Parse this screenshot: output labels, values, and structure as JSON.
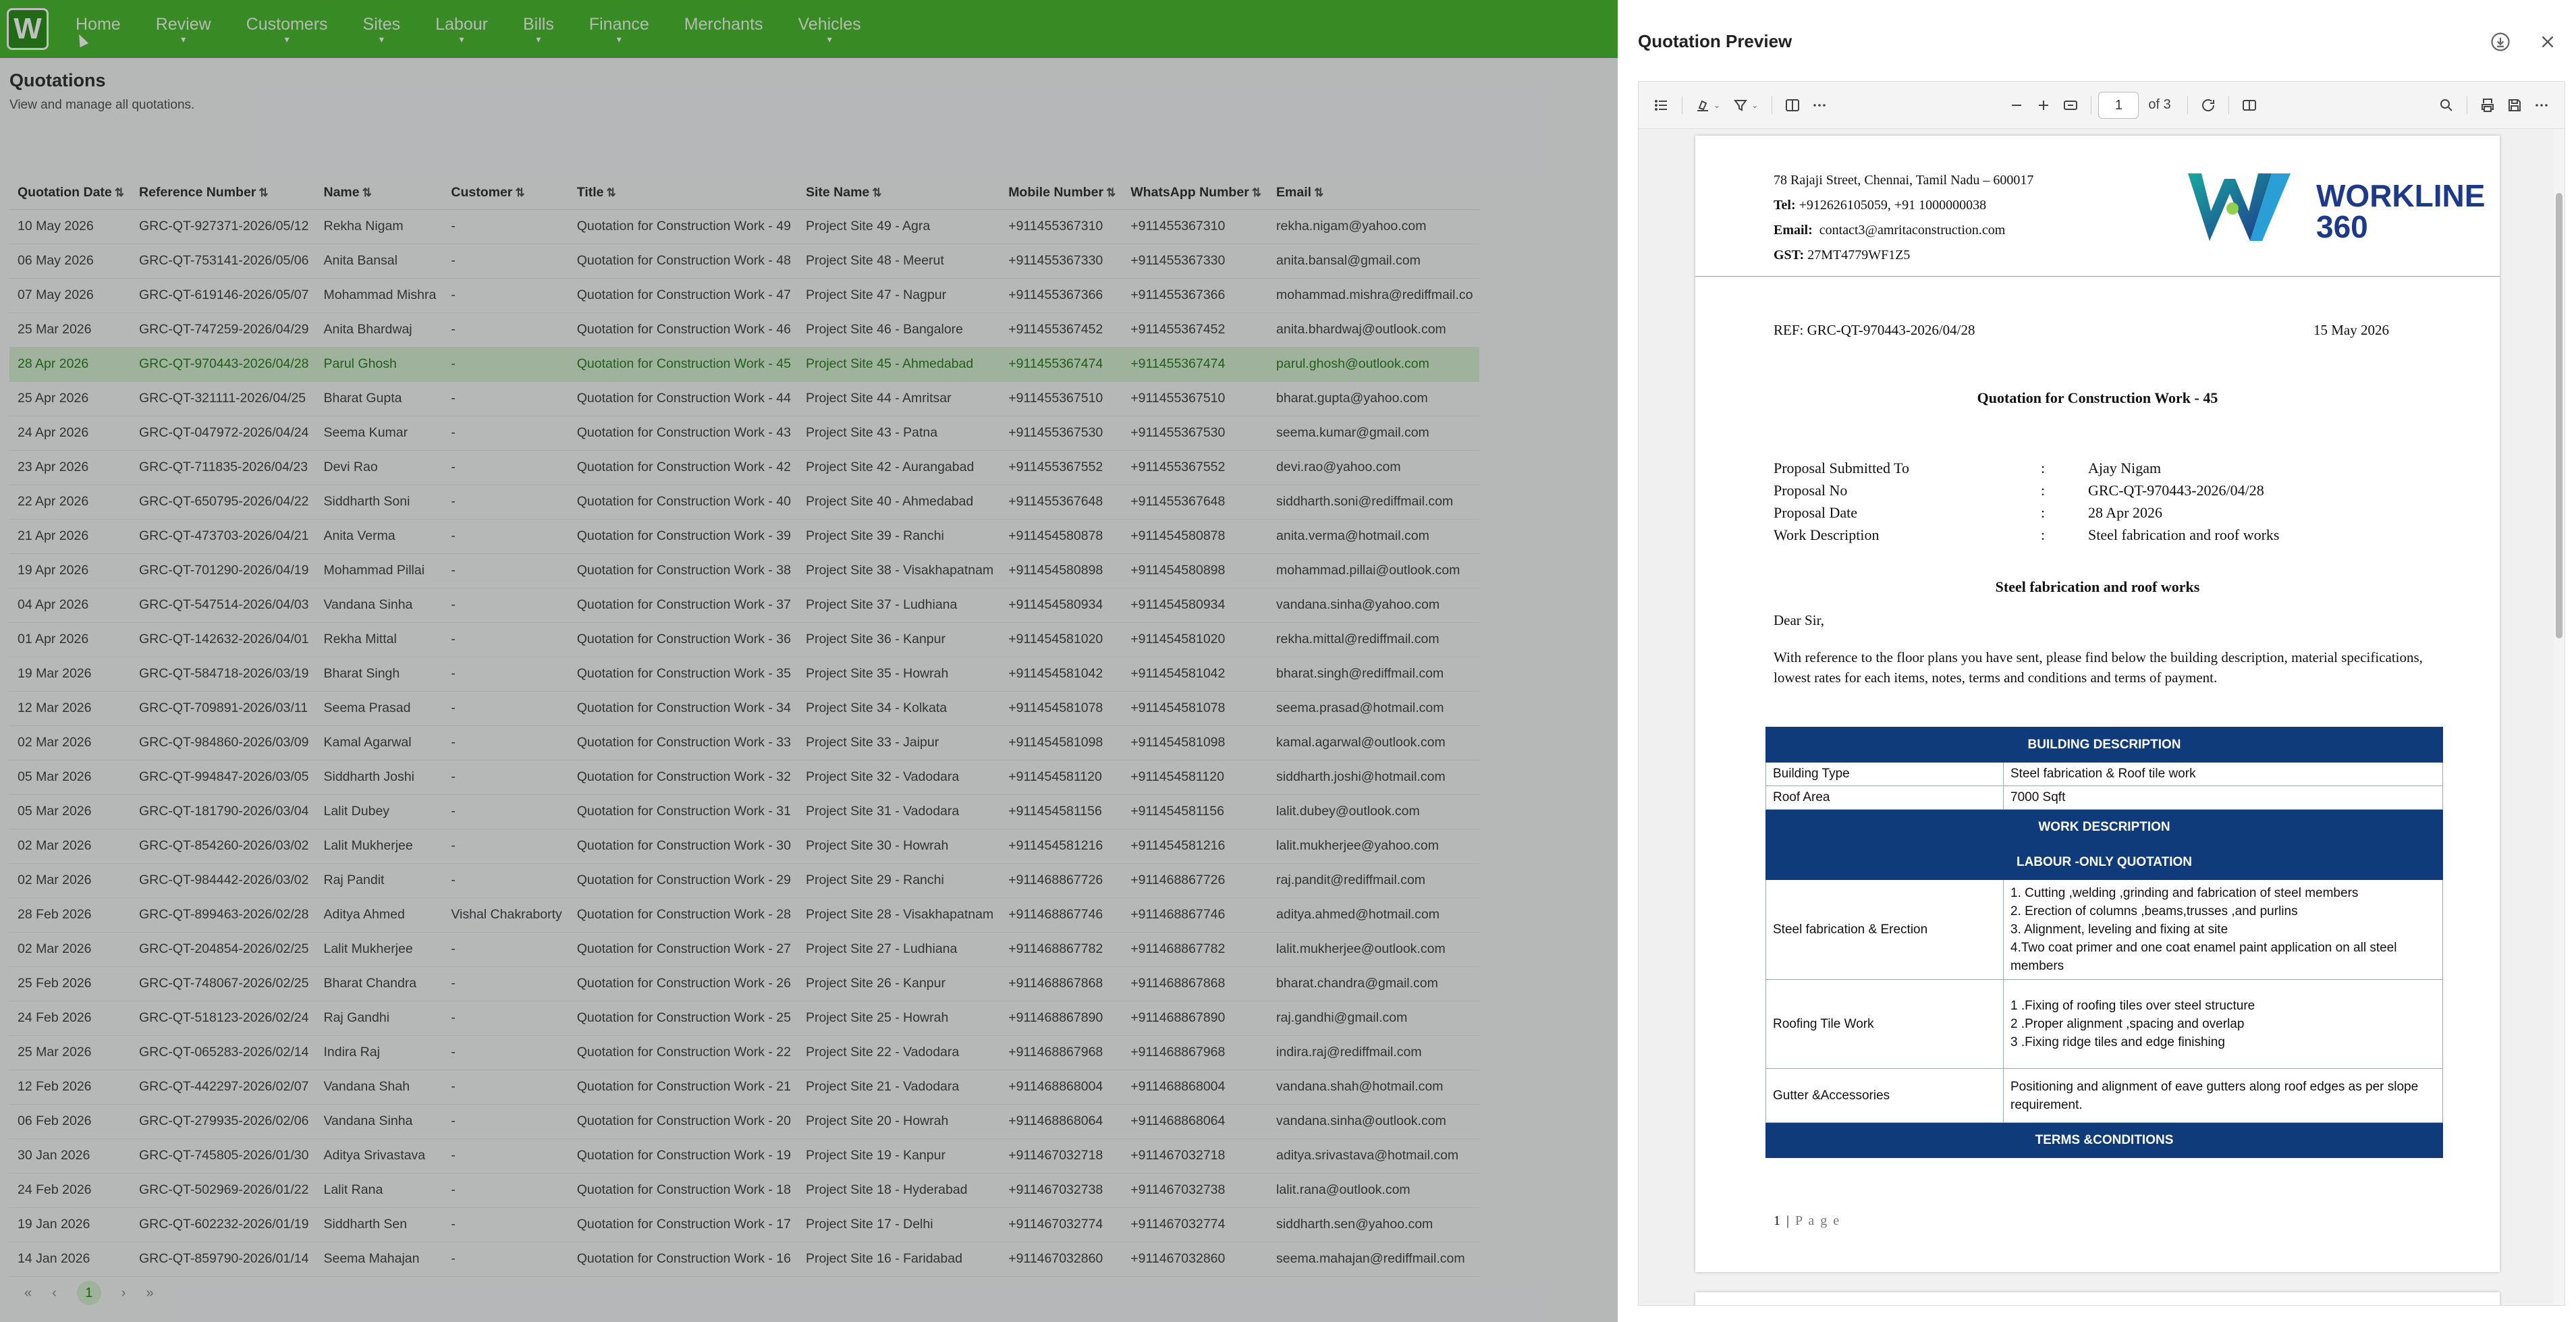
{
  "app": {
    "logo": "W",
    "nav": [
      {
        "label": "Home",
        "caret": false
      },
      {
        "label": "Review",
        "caret": true
      },
      {
        "label": "Customers",
        "caret": true
      },
      {
        "label": "Sites",
        "caret": true
      },
      {
        "label": "Labour",
        "caret": true
      },
      {
        "label": "Bills",
        "caret": true
      },
      {
        "label": "Finance",
        "caret": true
      },
      {
        "label": "Merchants",
        "caret": false
      },
      {
        "label": "Vehicles",
        "caret": true
      }
    ],
    "page_title": "Quotations",
    "page_subtitle": "View and manage all quotations.",
    "columns": [
      "Quotation Date",
      "Reference Number",
      "Name",
      "Customer",
      "Title",
      "Site Name",
      "Mobile Number",
      "WhatsApp Number",
      "Email"
    ],
    "rows": [
      [
        "10 May 2026",
        "GRC-QT-927371-2026/05/12",
        "Rekha Nigam",
        "-",
        "Quotation for Construction Work - 49",
        "Project Site 49 - Agra",
        "+911455367310",
        "+911455367310",
        "rekha.nigam@yahoo.com"
      ],
      [
        "06 May 2026",
        "GRC-QT-753141-2026/05/06",
        "Anita Bansal",
        "-",
        "Quotation for Construction Work - 48",
        "Project Site 48 - Meerut",
        "+911455367330",
        "+911455367330",
        "anita.bansal@gmail.com"
      ],
      [
        "07 May 2026",
        "GRC-QT-619146-2026/05/07",
        "Mohammad Mishra",
        "-",
        "Quotation for Construction Work - 47",
        "Project Site 47 - Nagpur",
        "+911455367366",
        "+911455367366",
        "mohammad.mishra@rediffmail.co"
      ],
      [
        "25 Mar 2026",
        "GRC-QT-747259-2026/04/29",
        "Anita Bhardwaj",
        "-",
        "Quotation for Construction Work - 46",
        "Project Site 46 - Bangalore",
        "+911455367452",
        "+911455367452",
        "anita.bhardwaj@outlook.com"
      ],
      [
        "28 Apr 2026",
        "GRC-QT-970443-2026/04/28",
        "Parul Ghosh",
        "-",
        "Quotation for Construction Work - 45",
        "Project Site 45 - Ahmedabad",
        "+911455367474",
        "+911455367474",
        "parul.ghosh@outlook.com"
      ],
      [
        "25 Apr 2026",
        "GRC-QT-321111-2026/04/25",
        "Bharat Gupta",
        "-",
        "Quotation for Construction Work - 44",
        "Project Site 44 - Amritsar",
        "+911455367510",
        "+911455367510",
        "bharat.gupta@yahoo.com"
      ],
      [
        "24 Apr 2026",
        "GRC-QT-047972-2026/04/24",
        "Seema Kumar",
        "-",
        "Quotation for Construction Work - 43",
        "Project Site 43 - Patna",
        "+911455367530",
        "+911455367530",
        "seema.kumar@gmail.com"
      ],
      [
        "23 Apr 2026",
        "GRC-QT-711835-2026/04/23",
        "Devi Rao",
        "-",
        "Quotation for Construction Work - 42",
        "Project Site 42 - Aurangabad",
        "+911455367552",
        "+911455367552",
        "devi.rao@yahoo.com"
      ],
      [
        "22 Apr 2026",
        "GRC-QT-650795-2026/04/22",
        "Siddharth Soni",
        "-",
        "Quotation for Construction Work - 40",
        "Project Site 40 - Ahmedabad",
        "+911455367648",
        "+911455367648",
        "siddharth.soni@rediffmail.com"
      ],
      [
        "21 Apr 2026",
        "GRC-QT-473703-2026/04/21",
        "Anita Verma",
        "-",
        "Quotation for Construction Work - 39",
        "Project Site 39 - Ranchi",
        "+911454580878",
        "+911454580878",
        "anita.verma@hotmail.com"
      ],
      [
        "19 Apr 2026",
        "GRC-QT-701290-2026/04/19",
        "Mohammad Pillai",
        "-",
        "Quotation for Construction Work - 38",
        "Project Site 38 - Visakhapatnam",
        "+911454580898",
        "+911454580898",
        "mohammad.pillai@outlook.com"
      ],
      [
        "04 Apr 2026",
        "GRC-QT-547514-2026/04/03",
        "Vandana Sinha",
        "-",
        "Quotation for Construction Work - 37",
        "Project Site 37 - Ludhiana",
        "+911454580934",
        "+911454580934",
        "vandana.sinha@yahoo.com"
      ],
      [
        "01 Apr 2026",
        "GRC-QT-142632-2026/04/01",
        "Rekha Mittal",
        "-",
        "Quotation for Construction Work - 36",
        "Project Site 36 - Kanpur",
        "+911454581020",
        "+911454581020",
        "rekha.mittal@rediffmail.com"
      ],
      [
        "19 Mar 2026",
        "GRC-QT-584718-2026/03/19",
        "Bharat Singh",
        "-",
        "Quotation for Construction Work - 35",
        "Project Site 35 - Howrah",
        "+911454581042",
        "+911454581042",
        "bharat.singh@rediffmail.com"
      ],
      [
        "12 Mar 2026",
        "GRC-QT-709891-2026/03/11",
        "Seema Prasad",
        "-",
        "Quotation for Construction Work - 34",
        "Project Site 34 - Kolkata",
        "+911454581078",
        "+911454581078",
        "seema.prasad@hotmail.com"
      ],
      [
        "02 Mar 2026",
        "GRC-QT-984860-2026/03/09",
        "Kamal Agarwal",
        "-",
        "Quotation for Construction Work - 33",
        "Project Site 33 - Jaipur",
        "+911454581098",
        "+911454581098",
        "kamal.agarwal@outlook.com"
      ],
      [
        "05 Mar 2026",
        "GRC-QT-994847-2026/03/05",
        "Siddharth Joshi",
        "-",
        "Quotation for Construction Work - 32",
        "Project Site 32 - Vadodara",
        "+911454581120",
        "+911454581120",
        "siddharth.joshi@hotmail.com"
      ],
      [
        "05 Mar 2026",
        "GRC-QT-181790-2026/03/04",
        "Lalit Dubey",
        "-",
        "Quotation for Construction Work - 31",
        "Project Site 31 - Vadodara",
        "+911454581156",
        "+911454581156",
        "lalit.dubey@outlook.com"
      ],
      [
        "02 Mar 2026",
        "GRC-QT-854260-2026/03/02",
        "Lalit Mukherjee",
        "-",
        "Quotation for Construction Work - 30",
        "Project Site 30 - Howrah",
        "+911454581216",
        "+911454581216",
        "lalit.mukherjee@yahoo.com"
      ],
      [
        "02 Mar 2026",
        "GRC-QT-984442-2026/03/02",
        "Raj Pandit",
        "-",
        "Quotation for Construction Work - 29",
        "Project Site 29 - Ranchi",
        "+911468867726",
        "+911468867726",
        "raj.pandit@rediffmail.com"
      ],
      [
        "28 Feb 2026",
        "GRC-QT-899463-2026/02/28",
        "Aditya Ahmed",
        "Vishal Chakraborty",
        "Quotation for Construction Work - 28",
        "Project Site 28 - Visakhapatnam",
        "+911468867746",
        "+911468867746",
        "aditya.ahmed@hotmail.com"
      ],
      [
        "02 Mar 2026",
        "GRC-QT-204854-2026/02/25",
        "Lalit Mukherjee",
        "-",
        "Quotation for Construction Work - 27",
        "Project Site 27 - Ludhiana",
        "+911468867782",
        "+911468867782",
        "lalit.mukherjee@outlook.com"
      ],
      [
        "25 Feb 2026",
        "GRC-QT-748067-2026/02/25",
        "Bharat Chandra",
        "-",
        "Quotation for Construction Work - 26",
        "Project Site 26 - Kanpur",
        "+911468867868",
        "+911468867868",
        "bharat.chandra@gmail.com"
      ],
      [
        "24 Feb 2026",
        "GRC-QT-518123-2026/02/24",
        "Raj Gandhi",
        "-",
        "Quotation for Construction Work - 25",
        "Project Site 25 - Howrah",
        "+911468867890",
        "+911468867890",
        "raj.gandhi@gmail.com"
      ],
      [
        "25 Mar 2026",
        "GRC-QT-065283-2026/02/14",
        "Indira Raj",
        "-",
        "Quotation for Construction Work - 22",
        "Project Site 22 - Vadodara",
        "+911468867968",
        "+911468867968",
        "indira.raj@rediffmail.com"
      ],
      [
        "12 Feb 2026",
        "GRC-QT-442297-2026/02/07",
        "Vandana Shah",
        "-",
        "Quotation for Construction Work - 21",
        "Project Site 21 - Vadodara",
        "+911468868004",
        "+911468868004",
        "vandana.shah@hotmail.com"
      ],
      [
        "06 Feb 2026",
        "GRC-QT-279935-2026/02/06",
        "Vandana Sinha",
        "-",
        "Quotation for Construction Work - 20",
        "Project Site 20 - Howrah",
        "+911468868064",
        "+911468868064",
        "vandana.sinha@outlook.com"
      ],
      [
        "30 Jan 2026",
        "GRC-QT-745805-2026/01/30",
        "Aditya Srivastava",
        "-",
        "Quotation for Construction Work - 19",
        "Project Site 19 - Kanpur",
        "+911467032718",
        "+911467032718",
        "aditya.srivastava@hotmail.com"
      ],
      [
        "24 Feb 2026",
        "GRC-QT-502969-2026/01/22",
        "Lalit Rana",
        "-",
        "Quotation for Construction Work - 18",
        "Project Site 18 - Hyderabad",
        "+911467032738",
        "+911467032738",
        "lalit.rana@outlook.com"
      ],
      [
        "19 Jan 2026",
        "GRC-QT-602232-2026/01/19",
        "Siddharth Sen",
        "-",
        "Quotation for Construction Work - 17",
        "Project Site 17 - Delhi",
        "+911467032774",
        "+911467032774",
        "siddharth.sen@yahoo.com"
      ],
      [
        "14 Jan 2026",
        "GRC-QT-859790-2026/01/14",
        "Seema Mahajan",
        "-",
        "Quotation for Construction Work - 16",
        "Project Site 16 - Faridabad",
        "+911467032860",
        "+911467032860",
        "seema.mahajan@rediffmail.com"
      ]
    ],
    "selected_row_index": 4,
    "pager": {
      "first": "«",
      "prev": "‹",
      "current": "1",
      "next": "›",
      "last": "»"
    }
  },
  "drawer": {
    "title": "Quotation Preview",
    "viewer": {
      "page_current": "1",
      "page_total": "of 3"
    },
    "pdf": {
      "address_line": "78 Rajaji Street, Chennai, Tamil Nadu – 600017",
      "tel_label": "Tel:",
      "tel_value": "+912626105059, +91 1000000038",
      "email_label": "Email:",
      "email_value": "contact3@amritaconstruction.com",
      "gst_label": "GST:",
      "gst_value": "27MT4779WF1Z5",
      "brand_line1": "WORKLINE",
      "brand_line2": "360",
      "ref": "REF: GRC-QT-970443-2026/04/28",
      "date": "15 May 2026",
      "title": "Quotation for Construction Work - 45",
      "props": [
        {
          "k": "Proposal Submitted To",
          "v": "Ajay Nigam"
        },
        {
          "k": "Proposal No",
          "v": "GRC-QT-970443-2026/04/28"
        },
        {
          "k": "Proposal Date",
          "v": "28 Apr 2026"
        },
        {
          "k": "Work Description",
          "v": "Steel fabrication and roof works"
        }
      ],
      "colon": ":",
      "work_title": "Steel fabrication and roof works",
      "salutation": "Dear Sir,",
      "intro": "With reference to the floor plans you have sent, please find below the building description, material specifications, lowest rates for each items, notes, terms and conditions and terms of payment.",
      "table": {
        "building_desc_head": "BUILDING DESCRIPTION",
        "building_type_label": "Building Type",
        "building_type_value": "Steel fabrication & Roof tile work",
        "roof_area_label": "Roof Area",
        "roof_area_value": "7000 Sqft",
        "work_desc_head": "WORK DESCRIPTION",
        "labour_head": "LABOUR -ONLY QUOTATION",
        "steel_label": "Steel fabrication & Erection",
        "steel_items": [
          "1. Cutting ,welding ,grinding and fabrication of steel members",
          "2. Erection of columns ,beams,trusses ,and purlins",
          "3. Alignment, leveling and fixing at site",
          "4.Two  coat primer and one coat  enamel paint application on all steel members"
        ],
        "roofing_label": "Roofing Tile Work",
        "roofing_items": [
          "1 .Fixing of roofing tiles over steel structure",
          "2 .Proper alignment ,spacing and overlap",
          "3 .Fixing ridge tiles and edge finishing"
        ],
        "gutter_label": "Gutter &Accessories",
        "gutter_value": "Positioning and alignment of eave gutters along roof edges as per slope requirement.",
        "terms_head": "TERMS &CONDITIONS"
      },
      "page_footer_num": "1 |",
      "page_footer_word": "P a g e"
    }
  },
  "colors": {
    "nav_green": "#4bb832",
    "selected_row": "#d5efd1",
    "table_head_blue": "#0f3b7a",
    "brand_blue": "#1d3a8a"
  }
}
